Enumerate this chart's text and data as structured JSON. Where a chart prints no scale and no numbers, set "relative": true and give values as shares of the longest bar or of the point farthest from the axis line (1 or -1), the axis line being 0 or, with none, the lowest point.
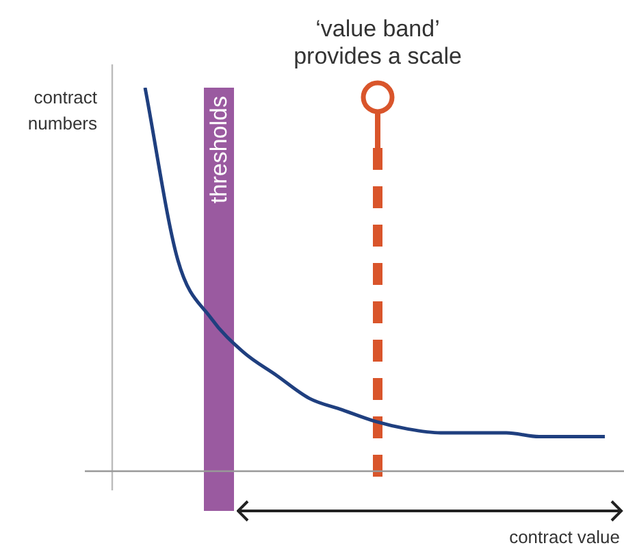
{
  "chart_data": {
    "type": "line",
    "relative": true,
    "xlabel": "contract value",
    "ylabel": "contract numbers",
    "categories": [
      null,
      null,
      null,
      null,
      null,
      null,
      null,
      null,
      null,
      null,
      null,
      null,
      null,
      null,
      null,
      null
    ],
    "series": [
      {
        "color": "#1f3f7f",
        "values": [
          null,
          1.0,
          0.55,
          0.4,
          0.31,
          0.25,
          0.19,
          0.16,
          0.13,
          0.11,
          0.1,
          0.1,
          0.1,
          0.09,
          0.09,
          0.09
        ]
      }
    ],
    "annotations": [
      "‘value band’ provides a scale",
      "thresholds"
    ],
    "marker": "none",
    "line_style": "solid",
    "legend": false,
    "tick_labels": false
  }
}
